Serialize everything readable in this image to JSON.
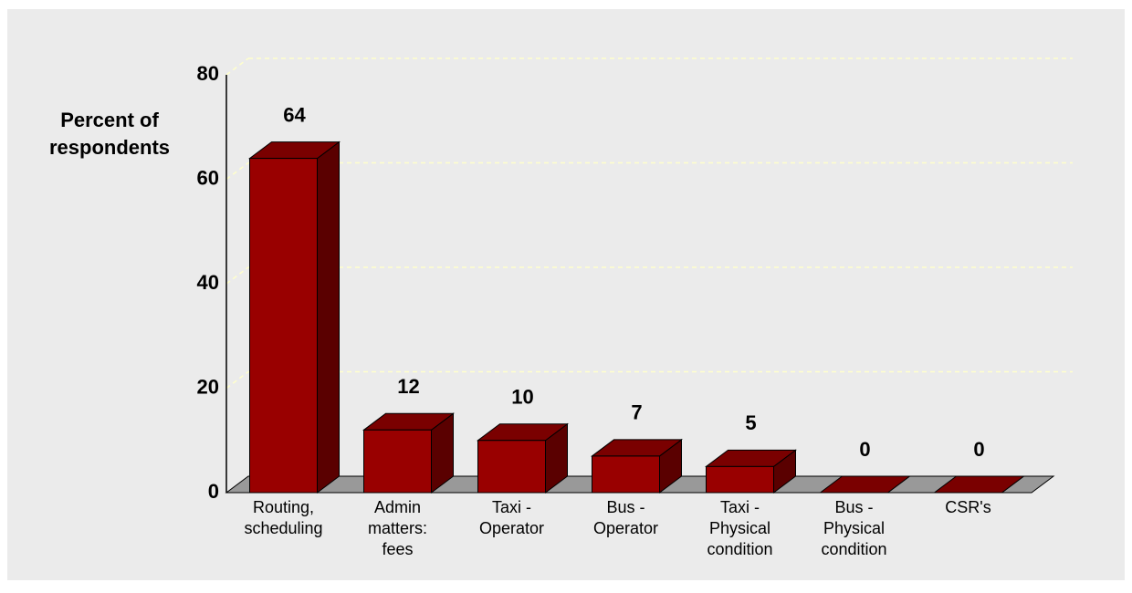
{
  "chart_data": {
    "type": "bar3d",
    "y_label": "Percent of\nrespondents",
    "categories": [
      "Routing,\nscheduling",
      "Admin\nmatters:\nfees",
      "Taxi -\nOperator",
      "Bus -\nOperator",
      "Taxi -\nPhysical\ncondition",
      "Bus -\nPhysical\ncondition",
      "CSR's"
    ],
    "values": [
      64,
      12,
      10,
      7,
      5,
      0,
      0
    ],
    "color": "#990000",
    "ylim": [
      0,
      80
    ],
    "yticks": [
      0,
      20,
      40,
      60,
      80
    ],
    "grid": true
  }
}
